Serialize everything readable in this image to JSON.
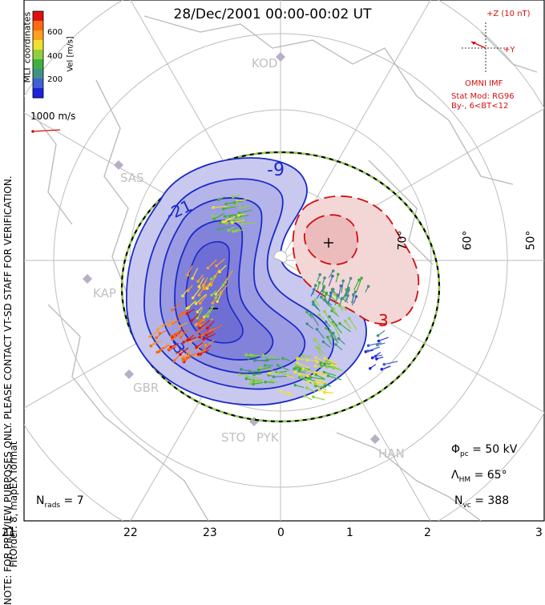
{
  "title": "28/Dec/2001 00:00-00:02 UT",
  "side_note": "NOTE: FOR PREVIEW PURPOSES ONLY. PLEASE CONTACT VT-SD STAFF FOR VERIFICATION.",
  "fit_order": "FitOrder: 8, mapEX format",
  "coord_label": "MLT coordinates",
  "colorbar": {
    "ticks": [
      "600",
      "400",
      "200"
    ],
    "unit": "Vel [m/s]",
    "colors": [
      "#e01010",
      "#ff6a10",
      "#ffa020",
      "#f0e030",
      "#90d040",
      "#40b040",
      "#409088",
      "#4060d0",
      "#2020e0"
    ]
  },
  "scale_label": "1000 m/s",
  "imf": {
    "z_label": "+Z (10 nT)",
    "y_label": "+Y",
    "source": "OMNI IMF",
    "model_line1": "Stat Mod: RG96",
    "model_line2": "By-, 6<BT<12"
  },
  "stations": [
    "KOD",
    "SAS",
    "KAP",
    "GBR",
    "STO",
    "PYK",
    "HAN"
  ],
  "latitude_labels": [
    "70°",
    "60°",
    "50°"
  ],
  "contour_labels": [
    "-9",
    "-21",
    "-3",
    "3"
  ],
  "stats": {
    "phi": "Φ",
    "phi_sub": "pc",
    "phi_val": " = 50 kV",
    "lambda": "Λ",
    "lambda_sub": "HM",
    "lambda_val": " = 65°",
    "nvc": "N",
    "nvc_sub": "vc",
    "nvc_val": " = 388"
  },
  "nrads": {
    "label": "N",
    "sub": "rads",
    "val": " = 7"
  },
  "mlt_labels": [
    "21",
    "22",
    "23",
    "0",
    "1",
    "2",
    "3"
  ]
}
